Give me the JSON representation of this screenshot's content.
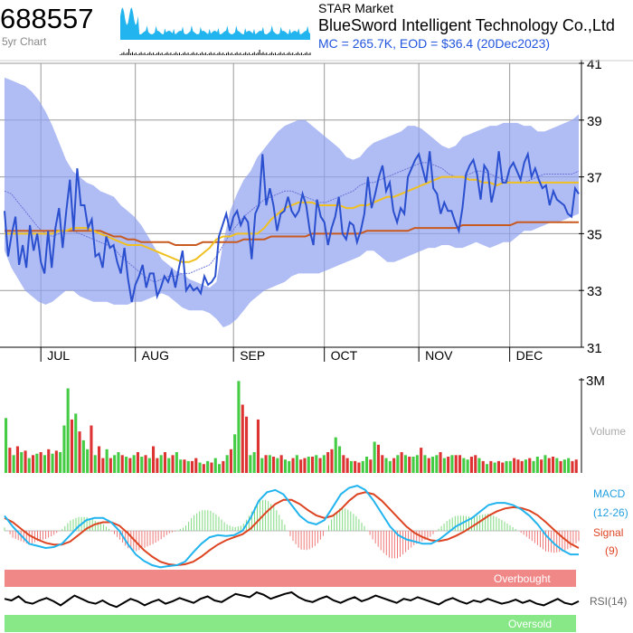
{
  "header": {
    "ticker": "688557",
    "period_label": "5yr Chart",
    "market": "STAR Market",
    "company": "BlueSword Intelligent Technology Co.,Ltd",
    "stats": "MC = 265.7K, EOD = $36.4 (20Dec2023)"
  },
  "colors": {
    "price": "#2a4fcf",
    "band": "#8fa0f0",
    "ma_fast": "#f0c020",
    "ma_slow": "#c85a20",
    "vol_up": "#44cc44",
    "vol_down": "#dd3333",
    "macd": "#22b4ee",
    "signal": "#dd4422",
    "overbought": "#f08888",
    "oversold": "#88e888",
    "grid": "#999999",
    "mini": "#22b4ee"
  },
  "chart_data": {
    "type": "line",
    "price_axis": {
      "ticks": [
        "41",
        "39",
        "37",
        "35",
        "33",
        "31"
      ],
      "ylim": [
        31,
        41
      ]
    },
    "months": [
      "JUL",
      "AUG",
      "SEP",
      "OCT",
      "NOV",
      "DEC"
    ],
    "month_positions": [
      10,
      36,
      63,
      88,
      114,
      139
    ],
    "price": [
      35.8,
      34.2,
      35.0,
      35.6,
      33.9,
      34.6,
      33.8,
      35.3,
      34.4,
      35.0,
      34.0,
      33.6,
      35.1,
      33.8,
      35.2,
      35.9,
      34.5,
      35.8,
      36.9,
      35.1,
      37.3,
      36.0,
      36.0,
      35.2,
      35.5,
      34.2,
      34.3,
      33.8,
      34.9,
      34.5,
      34.6,
      34.0,
      33.6,
      34.5,
      33.4,
      32.6,
      33.2,
      33.5,
      33.9,
      33.1,
      33.6,
      33.6,
      32.8,
      33.1,
      33.5,
      33.3,
      33.7,
      33.1,
      33.8,
      34.4,
      33.0,
      33.2,
      33.0,
      33.1,
      32.9,
      33.5,
      33.2,
      33.3,
      33.5,
      34.9,
      35.3,
      35.7,
      35.1,
      35.6,
      35.8,
      35.3,
      35.6,
      35.4,
      34.1,
      35.7,
      36.0,
      37.8,
      36.0,
      36.6,
      36.0,
      35.1,
      35.7,
      35.8,
      36.3,
      35.8,
      35.6,
      35.8,
      36.4,
      36.0,
      35.1,
      34.6,
      36.2,
      35.6,
      35.4,
      34.6,
      35.2,
      35.6,
      36.3,
      35.0,
      34.8,
      35.4,
      35.3,
      34.7,
      35.1,
      35.7,
      37.0,
      35.9,
      36.4,
      37.0,
      37.4,
      36.5,
      36.8,
      35.8,
      35.4,
      35.9,
      35.7,
      37.0,
      37.3,
      37.6,
      37.8,
      37.3,
      36.8,
      37.9,
      36.6,
      36.4,
      35.7,
      36.1,
      35.8,
      35.8,
      35.4,
      35.1,
      35.9,
      37.1,
      37.4,
      37.6,
      37.1,
      36.2,
      37.4,
      37.2,
      36.1,
      36.7,
      37.9,
      36.8,
      36.8,
      37.3,
      37.5,
      37.2,
      36.9,
      37.5,
      37.8,
      37.0,
      37.3,
      36.9,
      36.6,
      36.7,
      36.0,
      36.5,
      36.2,
      36.1,
      36.0,
      35.7,
      35.6,
      36.6,
      36.4
    ],
    "bb_upper": [
      40.5,
      40.4,
      40.3,
      40.2,
      40.0,
      39.7,
      39.3,
      38.8,
      38.2,
      37.6,
      37.2,
      37.0,
      36.8,
      36.7,
      36.5,
      36.4,
      36.3,
      36.0,
      35.8,
      35.6,
      35.3,
      34.9,
      34.5,
      34.1,
      33.9,
      33.7,
      33.6,
      33.4,
      33.3,
      33.2,
      33.1,
      33.3,
      34.7,
      35.8,
      36.4,
      36.9,
      37.2,
      37.7,
      38.0,
      38.3,
      38.6,
      38.8,
      38.9,
      39.0,
      39.0,
      38.8,
      38.6,
      38.4,
      38.2,
      38.0,
      37.7,
      37.6,
      37.7,
      38.0,
      38.2,
      38.3,
      38.4,
      38.5,
      38.6,
      38.8,
      38.8,
      38.7,
      38.5,
      38.3,
      38.1,
      38.0,
      38.1,
      38.4,
      38.5,
      38.6,
      38.7,
      38.8,
      38.8,
      38.9,
      38.9,
      38.9,
      38.8,
      38.8,
      38.6,
      38.6,
      38.7,
      38.8,
      38.9,
      39.0,
      39.2
    ],
    "bb_lower": [
      34.4,
      33.8,
      33.4,
      33.0,
      32.8,
      32.6,
      32.5,
      32.6,
      32.8,
      33.0,
      33.0,
      32.8,
      32.7,
      32.6,
      32.6,
      32.6,
      32.5,
      32.5,
      32.5,
      32.6,
      32.6,
      32.7,
      32.8,
      32.9,
      32.8,
      32.6,
      32.4,
      32.3,
      32.3,
      32.3,
      32.2,
      32.0,
      31.7,
      31.8,
      32.0,
      32.3,
      32.6,
      32.8,
      33.0,
      33.1,
      33.2,
      33.3,
      33.5,
      33.6,
      33.6,
      33.6,
      33.6,
      33.7,
      33.8,
      33.9,
      34.0,
      34.1,
      34.2,
      34.4,
      34.4,
      34.2,
      34.0,
      34.0,
      34.1,
      34.2,
      34.3,
      34.4,
      34.5,
      34.5,
      34.6,
      34.6,
      34.5,
      34.5,
      34.6,
      34.7,
      34.6,
      34.5,
      34.6,
      34.7,
      34.7,
      34.9,
      35.1,
      35.1,
      35.2,
      35.3,
      35.4,
      35.4,
      35.5,
      35.6,
      35.7
    ],
    "bb_mid": [
      36.5,
      36.4,
      36.1,
      35.8,
      35.5,
      35.2,
      35.0,
      34.9,
      35.0,
      35.1,
      35.1,
      35.0,
      34.9,
      34.8,
      34.7,
      34.6,
      34.5,
      34.2,
      34.0,
      33.8,
      33.6,
      33.4,
      33.3,
      33.4,
      33.5,
      33.5,
      33.6,
      33.6,
      33.7,
      33.8,
      33.9,
      34.2,
      34.6,
      35.0,
      35.3,
      35.6,
      35.8,
      36.0,
      36.2,
      36.3,
      36.4,
      36.5,
      36.5,
      36.4,
      36.3,
      36.2,
      36.1,
      36.1,
      36.2,
      36.3,
      36.4,
      36.5,
      36.7,
      36.8,
      36.8,
      36.9,
      37.0,
      37.1,
      37.2,
      37.3,
      37.4,
      37.5,
      37.5,
      37.4,
      37.3,
      37.1,
      37.0,
      37.0,
      37.1,
      37.2,
      37.2,
      37.1,
      37.0,
      36.9,
      36.8,
      36.8,
      36.8,
      36.9,
      37.0,
      37.1,
      37.1,
      37.1,
      37.1,
      37.1,
      37.2
    ],
    "ma_fast": [
      35.0,
      35.0,
      35.0,
      35.0,
      35.0,
      35.0,
      35.0,
      35.0,
      35.1,
      35.1,
      35.2,
      35.2,
      35.2,
      35.1,
      35.0,
      34.9,
      34.8,
      34.7,
      34.6,
      34.6,
      34.6,
      34.5,
      34.4,
      34.3,
      34.2,
      34.1,
      34.0,
      34.0,
      34.1,
      34.3,
      34.5,
      34.8,
      34.9,
      34.9,
      35.0,
      35.0,
      35.0,
      35.0,
      35.2,
      35.5,
      35.7,
      35.9,
      36.0,
      36.1,
      36.1,
      36.1,
      36.0,
      36.0,
      36.0,
      36.0,
      35.9,
      35.9,
      36.0,
      36.0,
      36.1,
      36.2,
      36.3,
      36.3,
      36.4,
      36.5,
      36.6,
      36.7,
      36.8,
      36.9,
      37.0,
      37.0,
      37.0,
      37.0,
      36.9,
      36.9,
      36.8,
      36.8,
      36.7,
      36.8,
      36.8,
      36.8,
      36.8,
      36.8,
      36.8,
      36.8,
      36.8,
      36.8,
      36.8,
      36.8,
      36.8
    ],
    "ma_slow": [
      35.1,
      35.1,
      35.1,
      35.1,
      35.1,
      35.1,
      35.1,
      35.1,
      35.1,
      35.1,
      35.1,
      35.1,
      35.1,
      35.1,
      35.1,
      35.0,
      34.9,
      34.9,
      34.8,
      34.8,
      34.7,
      34.7,
      34.7,
      34.7,
      34.7,
      34.6,
      34.6,
      34.6,
      34.6,
      34.7,
      34.7,
      34.7,
      34.7,
      34.7,
      34.7,
      34.8,
      34.8,
      34.8,
      34.8,
      34.9,
      34.9,
      34.9,
      34.9,
      34.9,
      34.9,
      35.0,
      35.0,
      35.0,
      35.0,
      35.0,
      35.0,
      35.0,
      35.0,
      35.1,
      35.1,
      35.1,
      35.1,
      35.1,
      35.1,
      35.1,
      35.2,
      35.2,
      35.2,
      35.2,
      35.2,
      35.2,
      35.2,
      35.3,
      35.3,
      35.3,
      35.3,
      35.3,
      35.3,
      35.3,
      35.3,
      35.4,
      35.4,
      35.4,
      35.4,
      35.4,
      35.4,
      35.4,
      35.4,
      35.4,
      35.4
    ],
    "volume": {
      "axis_max_label": "3M",
      "label": "Volume",
      "values": [
        1.85,
        0.85,
        0.6,
        0.9,
        0.7,
        0.75,
        0.5,
        0.6,
        0.65,
        0.7,
        0.6,
        0.8,
        0.65,
        0.75,
        0.7,
        1.6,
        2.85,
        1.8,
        2.0,
        1.4,
        1.1,
        0.8,
        1.6,
        0.6,
        0.9,
        0.5,
        0.8,
        0.5,
        0.6,
        0.7,
        0.6,
        0.55,
        0.5,
        0.6,
        0.7,
        0.55,
        0.6,
        0.5,
        0.9,
        0.5,
        0.6,
        0.7,
        0.5,
        0.6,
        0.7,
        0.45,
        0.45,
        0.4,
        0.4,
        0.5,
        0.35,
        0.3,
        0.4,
        0.35,
        0.5,
        0.3,
        0.4,
        0.6,
        0.8,
        1.3,
        3.1,
        2.3,
        1.9,
        0.6,
        0.7,
        1.8,
        0.5,
        0.6,
        0.6,
        0.55,
        0.5,
        0.6,
        0.45,
        0.4,
        0.5,
        0.6,
        0.45,
        0.5,
        0.55,
        0.55,
        0.6,
        0.5,
        0.6,
        0.7,
        0.8,
        1.2,
        0.9,
        0.6,
        0.5,
        0.4,
        0.4,
        0.35,
        0.4,
        0.55,
        0.45,
        1.05,
        0.95,
        0.6,
        0.5,
        0.4,
        0.5,
        0.6,
        0.7,
        0.6,
        0.55,
        0.55,
        0.6,
        0.85,
        0.6,
        0.5,
        0.55,
        0.6,
        0.7,
        0.5,
        0.55,
        0.6,
        0.6,
        0.6,
        0.5,
        0.45,
        0.55,
        0.6,
        0.5,
        0.4,
        0.3,
        0.4,
        0.35,
        0.4,
        0.35,
        0.4,
        0.4,
        0.5,
        0.45,
        0.4,
        0.45,
        0.5,
        0.4,
        0.55,
        0.45,
        0.6,
        0.5,
        0.55,
        0.5,
        0.4,
        0.45,
        0.5,
        0.4,
        0.45
      ],
      "up": [
        1,
        0,
        1,
        0,
        1,
        0,
        1,
        0,
        1,
        0,
        1,
        0,
        1,
        0,
        1,
        1,
        1,
        0,
        1,
        0,
        1,
        1,
        0,
        1,
        0,
        0,
        1,
        0,
        1,
        1,
        0,
        1,
        0,
        1,
        0,
        1,
        0,
        1,
        0,
        0,
        1,
        0,
        1,
        0,
        1,
        1,
        0,
        1,
        0,
        0,
        1,
        0,
        1,
        0,
        1,
        1,
        0,
        1,
        0,
        1,
        1,
        0,
        0,
        1,
        1,
        0,
        1,
        0,
        1,
        0,
        1,
        0,
        1,
        1,
        0,
        1,
        0,
        0,
        1,
        0,
        1,
        0,
        1,
        0,
        0,
        1,
        1,
        0,
        0,
        1,
        0,
        0,
        1,
        1,
        0,
        1,
        0,
        0,
        1,
        1,
        0,
        1,
        0,
        1,
        0,
        1,
        1,
        0,
        1,
        0,
        1,
        1,
        0,
        1,
        0,
        1,
        0,
        0,
        1,
        1,
        0,
        0,
        1,
        0,
        1,
        0,
        1,
        0,
        0,
        1,
        1,
        0,
        0,
        0,
        1,
        0,
        1,
        1,
        0,
        1,
        0,
        0,
        1,
        0,
        1,
        1,
        0,
        0
      ]
    },
    "macd": {
      "label": "MACD",
      "params": "(12-26)",
      "signal_label": "Signal",
      "signal_params": "(9)",
      "ylim": [
        -1.2,
        1.2
      ],
      "macd": [
        0.35,
        0.1,
        -0.1,
        -0.3,
        -0.35,
        -0.4,
        -0.38,
        -0.3,
        -0.1,
        0.1,
        0.25,
        0.3,
        0.3,
        0.2,
        0.0,
        -0.3,
        -0.55,
        -0.7,
        -0.8,
        -0.85,
        -0.82,
        -0.8,
        -0.72,
        -0.5,
        -0.3,
        -0.15,
        -0.1,
        -0.12,
        -0.1,
        0.0,
        0.3,
        0.7,
        0.9,
        0.95,
        0.85,
        0.6,
        0.35,
        0.2,
        0.15,
        0.25,
        0.55,
        0.85,
        1.0,
        1.05,
        0.95,
        0.7,
        0.4,
        0.1,
        -0.1,
        -0.2,
        -0.25,
        -0.3,
        -0.3,
        -0.2,
        -0.05,
        0.1,
        0.2,
        0.3,
        0.45,
        0.6,
        0.65,
        0.65,
        0.6,
        0.5,
        0.35,
        0.15,
        -0.1,
        -0.3,
        -0.45,
        -0.55,
        -0.55
      ],
      "signal": [
        0.3,
        0.2,
        0.05,
        -0.1,
        -0.2,
        -0.28,
        -0.32,
        -0.32,
        -0.25,
        -0.1,
        0.05,
        0.15,
        0.2,
        0.2,
        0.12,
        -0.05,
        -0.25,
        -0.45,
        -0.6,
        -0.72,
        -0.78,
        -0.8,
        -0.78,
        -0.72,
        -0.6,
        -0.45,
        -0.32,
        -0.22,
        -0.15,
        -0.08,
        0.05,
        0.25,
        0.45,
        0.62,
        0.72,
        0.72,
        0.62,
        0.48,
        0.36,
        0.3,
        0.35,
        0.5,
        0.7,
        0.85,
        0.9,
        0.85,
        0.7,
        0.5,
        0.3,
        0.1,
        -0.05,
        -0.15,
        -0.22,
        -0.24,
        -0.2,
        -0.12,
        -0.02,
        0.1,
        0.22,
        0.35,
        0.45,
        0.52,
        0.55,
        0.53,
        0.47,
        0.36,
        0.2,
        0.02,
        -0.15,
        -0.3,
        -0.4
      ]
    },
    "rsi": {
      "label": "RSI(14)",
      "overbought_label": "Overbought",
      "oversold_label": "Oversold",
      "values": [
        52,
        50,
        55,
        48,
        46,
        50,
        53,
        49,
        44,
        50,
        56,
        52,
        48,
        46,
        50,
        45,
        42,
        47,
        52,
        49,
        44,
        48,
        51,
        46,
        49,
        53,
        50,
        47,
        52,
        55,
        50,
        48,
        53,
        58,
        56,
        54,
        60,
        57,
        52,
        55,
        58,
        60,
        54,
        50,
        48,
        52,
        55,
        50,
        47,
        51,
        54,
        49,
        52,
        56,
        53,
        50,
        47,
        52,
        50,
        54,
        51,
        48,
        45,
        50,
        53,
        49,
        46,
        50,
        48,
        52,
        49,
        46,
        48,
        51,
        47,
        50,
        46,
        44,
        48,
        52,
        47,
        45,
        49
      ]
    }
  }
}
